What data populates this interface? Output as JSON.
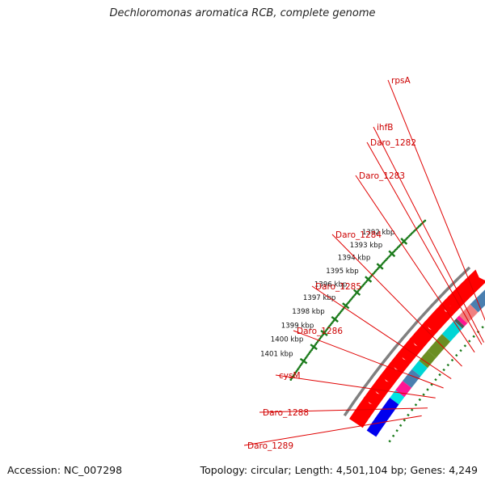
{
  "title": "Dechloromonas aromatica RCB, complete genome",
  "footer": {
    "accession": "Accession: NC_007298",
    "topology": "Topology: circular; Length: 4,501,104 bp; Genes: 4,249"
  },
  "colors": {
    "backbone": "#808080",
    "forward_track": "#ff0000",
    "tick": "#1a7a1a",
    "label": "#cc0000",
    "leader": "#e00000"
  },
  "scale_ticks": [
    {
      "label": "1392 kbp"
    },
    {
      "label": "1393 kbp"
    },
    {
      "label": "1394 kbp"
    },
    {
      "label": "1395 kbp"
    },
    {
      "label": "1396 kbp"
    },
    {
      "label": "1397 kbp"
    },
    {
      "label": "1398 kbp"
    },
    {
      "label": "1399 kbp"
    },
    {
      "label": "1400 kbp"
    },
    {
      "label": "1401 kbp"
    }
  ],
  "genes": [
    {
      "name": "rpsA",
      "color": "#f08080"
    },
    {
      "name": "ihfB",
      "color": "#ff1493"
    },
    {
      "name": "Daro_1282",
      "color": "#555555"
    },
    {
      "name": "Daro_1283",
      "color": "#00d5d5"
    },
    {
      "name": "Daro_1284",
      "color": "#6b8e23"
    },
    {
      "name": "Daro_1285",
      "color": "#6b8e23"
    },
    {
      "name": "Daro_1286",
      "color": "#00d5d5"
    },
    {
      "name": "cysM",
      "color": "#4a7fb0"
    },
    {
      "name": "Daro_1288",
      "color": "#ff1493"
    },
    {
      "name": "Daro_1289",
      "color": "#00e5e5"
    }
  ]
}
